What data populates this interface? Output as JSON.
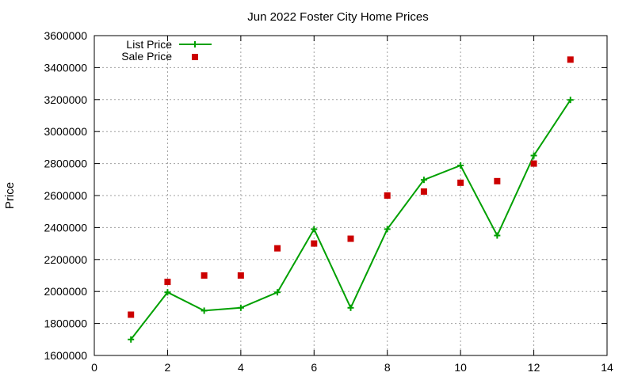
{
  "chart_data": {
    "type": "line",
    "title": "Jun 2022 Foster City Home Prices",
    "xlabel": "",
    "ylabel": "Price",
    "xlim": [
      0,
      14
    ],
    "ylim": [
      1600000,
      3600000
    ],
    "xticks": [
      0,
      2,
      4,
      6,
      8,
      10,
      12,
      14
    ],
    "yticks": [
      1600000,
      1800000,
      2000000,
      2200000,
      2400000,
      2600000,
      2800000,
      3000000,
      3200000,
      3400000,
      3600000
    ],
    "grid": true,
    "legend_position": "top-left",
    "series": [
      {
        "name": "List Price",
        "style": "line-with-plus-markers",
        "color": "#00a000",
        "x": [
          1,
          2,
          3,
          4,
          5,
          6,
          7,
          8,
          9,
          10,
          11,
          12,
          13
        ],
        "y": [
          1700000,
          1995000,
          1880000,
          1898000,
          1995000,
          2390000,
          1898000,
          2390000,
          2698000,
          2788000,
          2350000,
          2850000,
          3198000
        ]
      },
      {
        "name": "Sale Price",
        "style": "square-markers",
        "color": "#cc0000",
        "x": [
          1,
          2,
          3,
          4,
          5,
          6,
          7,
          8,
          9,
          10,
          11,
          12,
          13
        ],
        "y": [
          1855000,
          2060000,
          2100000,
          2100000,
          2270000,
          2300000,
          2330000,
          2600000,
          2625000,
          2680000,
          2690000,
          2800000,
          3450000
        ]
      }
    ]
  }
}
